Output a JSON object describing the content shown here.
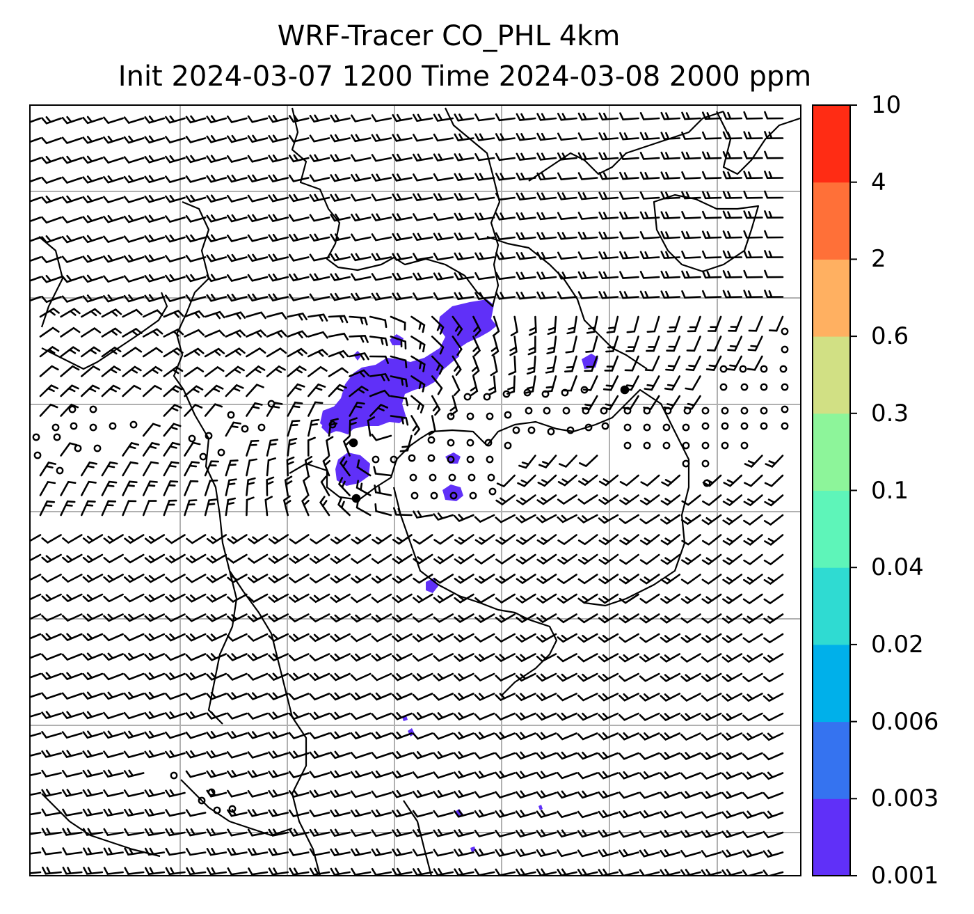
{
  "title": {
    "line1": "WRF-Tracer CO_PHL 4km",
    "line2": "Init 2024-03-07 1200 Time 2024-03-08 2000 ppm"
  },
  "colorbar": {
    "levels": [
      "0.001",
      "0.003",
      "0.006",
      "0.02",
      "0.04",
      "0.1",
      "0.3",
      "0.6",
      "2",
      "4",
      "10"
    ],
    "colors": [
      "#6030f8",
      "#3573f0",
      "#00b0ea",
      "#2fdbd2",
      "#5ef5b9",
      "#8df59a",
      "#d1e084",
      "#ffb061",
      "#ff7038",
      "#ff2c14"
    ]
  },
  "map": {
    "plume_color": "#6030f8",
    "grid_color": "#b0b0b0",
    "coast_color": "#000000",
    "barb_color": "#000000",
    "background": "#ffffff"
  },
  "icons": [
    "wind-barb",
    "calm-circle"
  ]
}
